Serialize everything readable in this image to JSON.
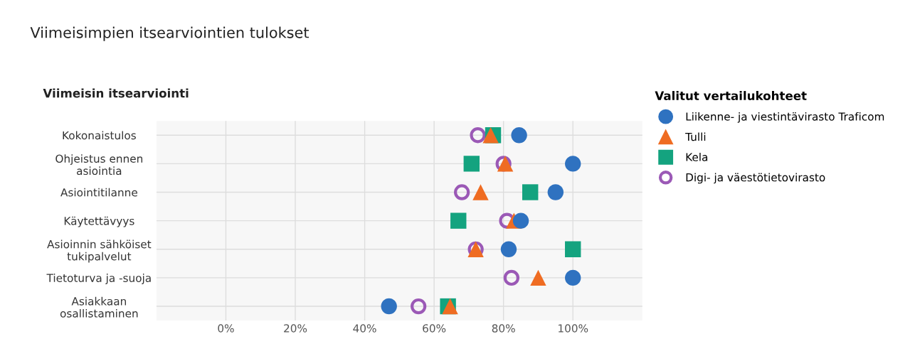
{
  "chart_data": {
    "type": "scatter",
    "title": "Viimeisimpien itsearviointien tulokset",
    "subtitle": "Viimeisin itsearviointi",
    "legend_title": "Valitut vertailukohteet",
    "orientation": "horizontal",
    "categories": [
      "Kokonaistulos",
      "Ohjeistus ennen\nasiointia",
      "Asiointitilanne",
      "Käytettävyys",
      "Asioinnin sähköiset\ntukipalvelut",
      "Tietoturva ja -suoja",
      "Asiakkaan\nosallistaminen"
    ],
    "series": [
      {
        "name": "Liikenne- ja viestintävirasto Traficom",
        "color": "#2f72c0",
        "marker": "circle",
        "values": [
          84.5,
          100,
          95,
          85,
          81.5,
          100,
          47
        ]
      },
      {
        "name": "Tulli",
        "color": "#ef6c22",
        "marker": "triangle",
        "values": [
          76.3,
          80.5,
          73.4,
          83,
          72,
          90,
          64.6
        ]
      },
      {
        "name": "Kela",
        "color": "#14a37f",
        "marker": "square",
        "values": [
          77,
          70.8,
          87.7,
          67,
          100,
          null,
          64
        ]
      },
      {
        "name": "Digi- ja väestötietovirasto",
        "color": "#9b59b6",
        "marker": "circle",
        "values": [
          72.6,
          80,
          68,
          81,
          72,
          82.3,
          55.5
        ]
      }
    ],
    "xlim": [
      -20,
      120
    ],
    "xticks": [
      {
        "value": 0,
        "label": "0%"
      },
      {
        "value": 20,
        "label": "20%"
      },
      {
        "value": 40,
        "label": "40%"
      },
      {
        "value": 60,
        "label": "60%"
      },
      {
        "value": 80,
        "label": "80%"
      },
      {
        "value": 100,
        "label": "100%"
      }
    ],
    "grid": true,
    "legend": "right"
  }
}
